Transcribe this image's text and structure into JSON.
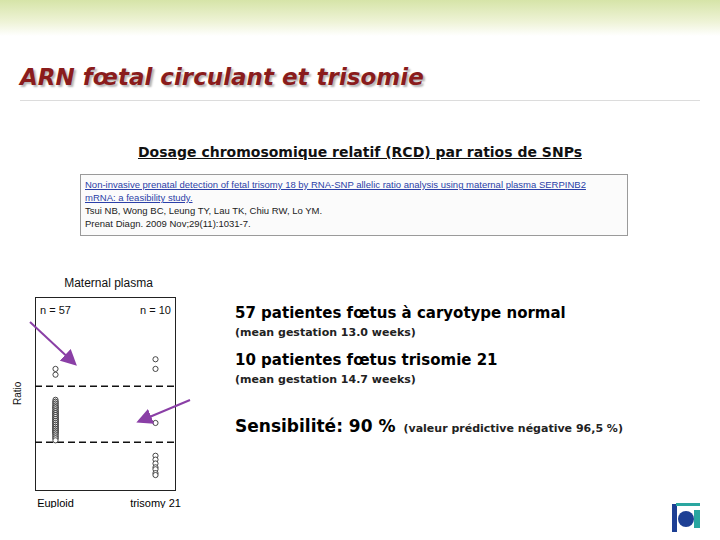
{
  "header": {
    "title": "ARN fœtal circulant et trisomie",
    "subtitle": "Dosage chromosomique relatif (RCD) par ratios de SNPs"
  },
  "citation": {
    "lines": [
      "Non-invasive prenatal detection of fetal trisomy 18 by RNA-SNP allelic ratio analysis using maternal plasma SERPINB2",
      "mRNA: a feasibility study.",
      "Tsui NB, Wong BC, Leung TY, Lau TK, Chiu RW, Lo YM.",
      "Prenat Diagn. 2009 Nov;29(11):1031-7."
    ]
  },
  "chart_data": {
    "type": "strip",
    "title": "Maternal plasma",
    "y_label": "Ratio",
    "categories": [
      "Euploid",
      "trisomy 21"
    ],
    "n_labels": [
      "n = 57",
      "n = 10"
    ],
    "groups": [
      {
        "category": "Euploid",
        "values": [
          0.63,
          0.6,
          0.47,
          0.46,
          0.46,
          0.45,
          0.45,
          0.44,
          0.44,
          0.43,
          0.43,
          0.43,
          0.42,
          0.42,
          0.41,
          0.41,
          0.41,
          0.4,
          0.4,
          0.4,
          0.39,
          0.39,
          0.39,
          0.38,
          0.38,
          0.38,
          0.37,
          0.37,
          0.37,
          0.36,
          0.36,
          0.36,
          0.35,
          0.35,
          0.35,
          0.34,
          0.34,
          0.34,
          0.33,
          0.33,
          0.33,
          0.32,
          0.32,
          0.32,
          0.31,
          0.31,
          0.31,
          0.3,
          0.3,
          0.3,
          0.29,
          0.29,
          0.28,
          0.28,
          0.27,
          0.27,
          0.26
        ]
      },
      {
        "category": "trisomy 21",
        "values": [
          0.68,
          0.63,
          0.35,
          0.18,
          0.16,
          0.14,
          0.12,
          0.11,
          0.09,
          0.08
        ]
      }
    ],
    "thresholds": [
      0.54,
      0.25
    ],
    "ylim": [
      0,
      1
    ],
    "yticks": [],
    "tick_labels": "x",
    "marker": "circle",
    "color": "#333333"
  },
  "notes": [
    {
      "text": "57 patientes fœtus à caryotype normal",
      "style": "big"
    },
    {
      "text": "(mean gestation 13.0 weeks)",
      "style": "small"
    },
    {
      "text": "10 patientes fœtus trisomie 21",
      "style": "big"
    },
    {
      "text": "(mean gestation 14.7 weeks)",
      "style": "small"
    }
  ],
  "result": {
    "text": "Sensibilité: 90 %",
    "detail": "(valeur prédictive négative 96,5 %)"
  }
}
